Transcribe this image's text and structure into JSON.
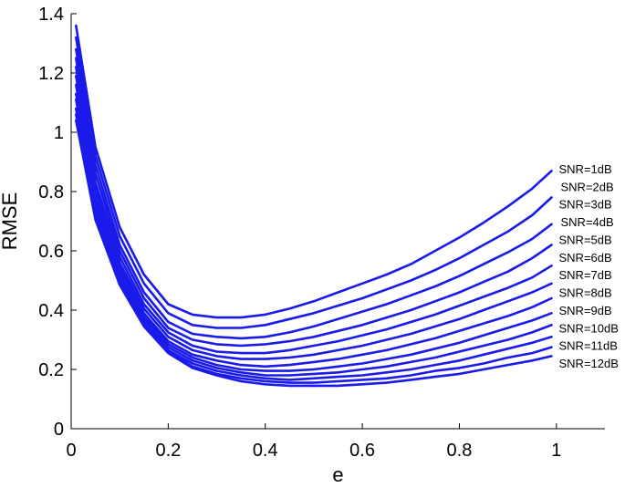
{
  "chart_data": {
    "type": "line",
    "xlabel": "e",
    "ylabel": "RMSE",
    "xlim": [
      0,
      1.1
    ],
    "ylim": [
      0,
      1.4
    ],
    "x_ticks": [
      "0",
      "0.2",
      "0.4",
      "0.6",
      "0.8",
      "1"
    ],
    "y_ticks": [
      "0",
      "0.2",
      "0.4",
      "0.6",
      "0.8",
      "1",
      "1.2",
      "1.4"
    ],
    "grid": false,
    "legend": "inline labels at right end of each line",
    "color": "#1a1aeb",
    "x": [
      0.01,
      0.05,
      0.1,
      0.15,
      0.2,
      0.25,
      0.3,
      0.35,
      0.4,
      0.45,
      0.5,
      0.55,
      0.6,
      0.65,
      0.7,
      0.75,
      0.8,
      0.85,
      0.9,
      0.95,
      0.99
    ],
    "series": [
      {
        "name": "SNR=1dB",
        "values": [
          1.36,
          0.95,
          0.68,
          0.52,
          0.42,
          0.385,
          0.375,
          0.375,
          0.385,
          0.405,
          0.43,
          0.46,
          0.49,
          0.52,
          0.555,
          0.6,
          0.645,
          0.695,
          0.75,
          0.81,
          0.87
        ]
      },
      {
        "name": "SNR=2dB",
        "values": [
          1.32,
          0.92,
          0.65,
          0.49,
          0.39,
          0.35,
          0.34,
          0.34,
          0.35,
          0.37,
          0.39,
          0.415,
          0.44,
          0.47,
          0.5,
          0.535,
          0.575,
          0.62,
          0.665,
          0.72,
          0.78
        ]
      },
      {
        "name": "SNR=3dB",
        "values": [
          1.28,
          0.89,
          0.62,
          0.46,
          0.36,
          0.32,
          0.31,
          0.305,
          0.31,
          0.325,
          0.345,
          0.37,
          0.395,
          0.42,
          0.45,
          0.48,
          0.515,
          0.555,
          0.595,
          0.64,
          0.69
        ]
      },
      {
        "name": "SNR=4dB",
        "values": [
          1.25,
          0.86,
          0.6,
          0.44,
          0.34,
          0.3,
          0.285,
          0.28,
          0.285,
          0.295,
          0.31,
          0.33,
          0.35,
          0.375,
          0.4,
          0.43,
          0.46,
          0.495,
          0.53,
          0.575,
          0.62
        ]
      },
      {
        "name": "SNR=5dB",
        "values": [
          1.22,
          0.83,
          0.58,
          0.42,
          0.325,
          0.28,
          0.26,
          0.255,
          0.255,
          0.265,
          0.28,
          0.295,
          0.315,
          0.335,
          0.36,
          0.385,
          0.415,
          0.445,
          0.475,
          0.51,
          0.55
        ]
      },
      {
        "name": "SNR=6dB",
        "values": [
          1.19,
          0.81,
          0.56,
          0.405,
          0.31,
          0.265,
          0.245,
          0.235,
          0.235,
          0.24,
          0.25,
          0.265,
          0.28,
          0.3,
          0.32,
          0.345,
          0.37,
          0.4,
          0.43,
          0.46,
          0.49
        ]
      },
      {
        "name": "SNR=7dB",
        "values": [
          1.16,
          0.79,
          0.545,
          0.39,
          0.295,
          0.25,
          0.23,
          0.215,
          0.21,
          0.215,
          0.225,
          0.235,
          0.25,
          0.265,
          0.285,
          0.305,
          0.33,
          0.355,
          0.38,
          0.41,
          0.44
        ]
      },
      {
        "name": "SNR=8dB",
        "values": [
          1.13,
          0.77,
          0.53,
          0.38,
          0.285,
          0.24,
          0.215,
          0.2,
          0.195,
          0.195,
          0.2,
          0.21,
          0.22,
          0.235,
          0.25,
          0.27,
          0.29,
          0.315,
          0.34,
          0.365,
          0.39
        ]
      },
      {
        "name": "SNR=9dB",
        "values": [
          1.11,
          0.75,
          0.515,
          0.37,
          0.275,
          0.23,
          0.205,
          0.19,
          0.18,
          0.18,
          0.185,
          0.19,
          0.2,
          0.21,
          0.225,
          0.24,
          0.26,
          0.28,
          0.3,
          0.325,
          0.35
        ]
      },
      {
        "name": "SNR=10dB",
        "values": [
          1.08,
          0.735,
          0.505,
          0.36,
          0.265,
          0.22,
          0.195,
          0.18,
          0.17,
          0.165,
          0.17,
          0.175,
          0.18,
          0.19,
          0.2,
          0.215,
          0.23,
          0.25,
          0.27,
          0.29,
          0.31
        ]
      },
      {
        "name": "SNR=11dB",
        "values": [
          1.06,
          0.72,
          0.495,
          0.35,
          0.26,
          0.21,
          0.185,
          0.17,
          0.16,
          0.155,
          0.155,
          0.16,
          0.165,
          0.17,
          0.18,
          0.195,
          0.205,
          0.22,
          0.24,
          0.255,
          0.275
        ]
      },
      {
        "name": "SNR=12dB",
        "values": [
          1.04,
          0.705,
          0.485,
          0.345,
          0.255,
          0.205,
          0.18,
          0.16,
          0.15,
          0.145,
          0.145,
          0.145,
          0.15,
          0.155,
          0.165,
          0.175,
          0.185,
          0.2,
          0.215,
          0.23,
          0.245
        ]
      }
    ]
  }
}
